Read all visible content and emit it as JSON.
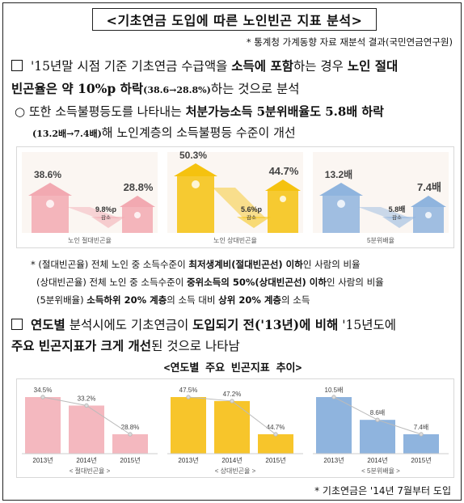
{
  "title": "<기초연금 도입에 따른 노인빈곤 지표 분석>",
  "source": "* 통계청 가계동향 자료 재분석 결과(국민연금연구원)",
  "para1": {
    "line1_a": "'15년말 시점 기준 기초연금 수급액을 ",
    "line1_b": "소득에 포함",
    "line1_c": "하는 경우 ",
    "line1_d": "노인 절대",
    "line2_a": "빈곤율은 약 10%p 하락",
    "line2_b": "(38.6→28.8%)",
    "line2_c": "하는 것으로 분석"
  },
  "para2": {
    "line1_a": "○ 또한 소득불평등도를 나타내는 ",
    "line1_b": "처분가능소득 5분위배율도 5.8배 하락",
    "line2_a": "(13.2배→7.4배)",
    "line2_b": "해 노인계층의 소득불평등 수준이 개선"
  },
  "infographic": [
    {
      "label": "노인 절대빈곤율",
      "before": "38.6%",
      "after": "28.8%",
      "drop": "9.8%p",
      "drop_sub": "감소",
      "color": "#f2a9b1"
    },
    {
      "label": "노인 상대빈곤율",
      "before": "50.3%",
      "after": "44.7%",
      "drop": "5.6%p",
      "drop_sub": "감소",
      "color": "#f5c20f"
    },
    {
      "label": "5분위배율",
      "before": "13.2배",
      "after": "7.4배",
      "drop": "5.8배",
      "drop_sub": "감소",
      "color": "#8fb4de"
    }
  ],
  "notes": {
    "n1_a": "* (절대빈곤율) 전체 노인 중 소득수준이 ",
    "n1_b": "최저생계비(절대빈곤선) 이하",
    "n1_c": "인 사람의 비율",
    "n2_a": "(상대빈곤율) 전체 노인 중 소득수준이 ",
    "n2_b": "중위소득의 50%(상대빈곤선) 이하",
    "n2_c": "인 사람의 비율",
    "n3_a": "(5분위배율) ",
    "n3_b": "소득하위 20% 계층",
    "n3_c": "의 소득 대비 ",
    "n3_d": "상위 20% 계층",
    "n3_e": "의 소득"
  },
  "para3": {
    "line1_a": "연도별",
    "line1_b": " 분석시에도 기초연금이 ",
    "line1_c": "도입되기 전('13년)에 비해",
    "line1_d": " '15년도에",
    "line2_a": "주요 빈곤지표가 크게 개선",
    "line2_b": "된 것으로 나타남"
  },
  "subtitle": "<연도별 주요 빈곤지표 추이>",
  "chart_data": [
    {
      "type": "bar",
      "categories": [
        "2013년",
        "2014년",
        "2015년"
      ],
      "values": [
        34.5,
        33.2,
        28.8
      ],
      "labels": [
        "34.5%",
        "33.2%",
        "28.8%"
      ],
      "caption": "< 절대빈곤율 >",
      "color": "#f4b8bf"
    },
    {
      "type": "bar",
      "categories": [
        "2013년",
        "2014년",
        "2015년"
      ],
      "values": [
        47.5,
        47.2,
        44.7
      ],
      "labels": [
        "47.5%",
        "47.2%",
        "44.7%"
      ],
      "caption": "< 상대빈곤율 >",
      "color": "#f7c52b"
    },
    {
      "type": "bar",
      "categories": [
        "2013년",
        "2014년",
        "2015년"
      ],
      "values": [
        10.5,
        8.6,
        7.4
      ],
      "labels": [
        "10.5배",
        "8.6배",
        "7.4배"
      ],
      "caption": "< 5분위배율 >",
      "color": "#8fb4de"
    }
  ],
  "footnote": "* 기초연금은 '14년 7월부터 도입"
}
